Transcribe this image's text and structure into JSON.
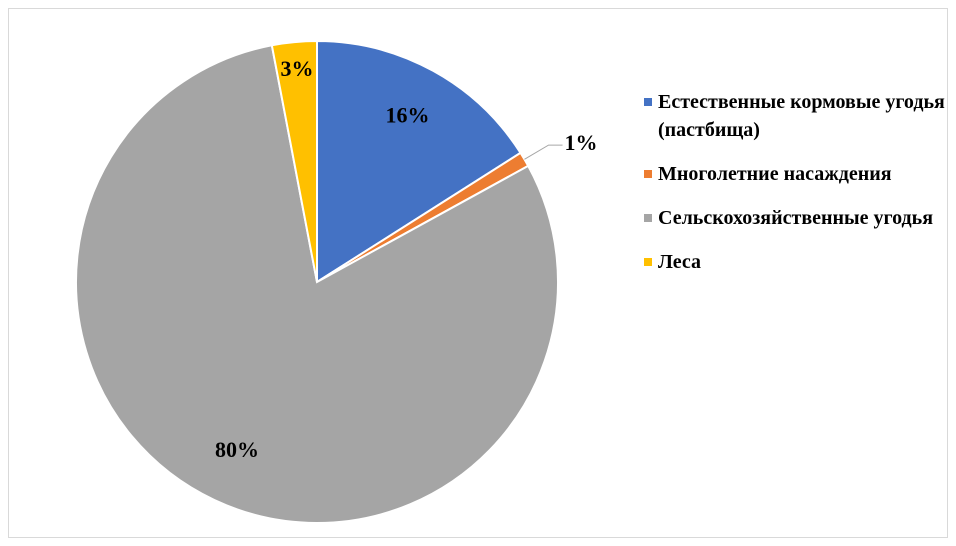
{
  "chart_data": {
    "type": "pie",
    "categories": [
      "Естественные кормовые угодья (пастбища)",
      "Многолетние насаждения",
      "Сельскохозяйственные угодья",
      "Леса"
    ],
    "values": [
      16,
      1,
      80,
      3
    ],
    "value_labels": [
      "16%",
      "1%",
      "80%",
      "3%"
    ],
    "colors": [
      "#4472c4",
      "#ed7d31",
      "#a5a5a5",
      "#ffc000"
    ],
    "legend": "right"
  }
}
